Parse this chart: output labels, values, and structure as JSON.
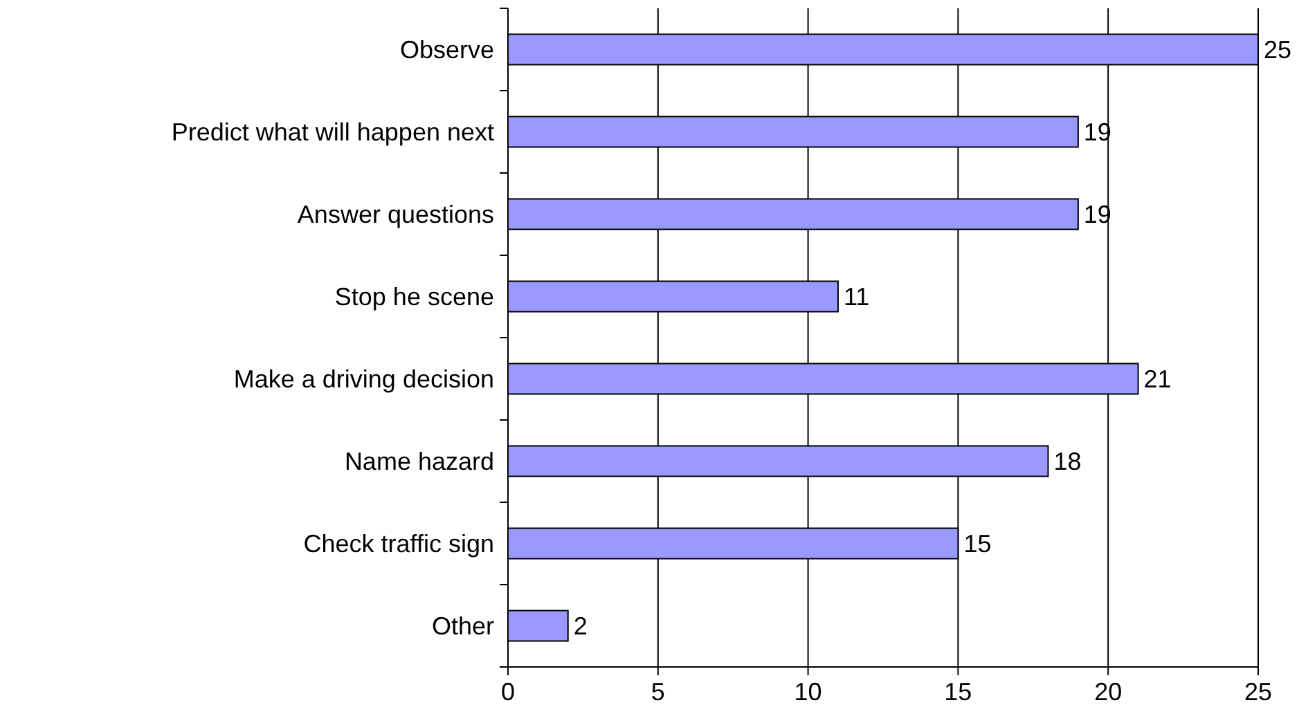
{
  "chart_data": {
    "type": "bar",
    "orientation": "horizontal",
    "categories": [
      "Observe",
      "Predict what will happen next",
      "Answer questions",
      "Stop he scene",
      "Make a driving decision",
      "Name hazard",
      "Check traffic sign",
      "Other"
    ],
    "values": [
      25,
      19,
      19,
      11,
      21,
      18,
      15,
      2
    ],
    "color": "#9999ff",
    "xlim": [
      0,
      25
    ],
    "xticks": [
      0,
      5,
      10,
      15,
      20,
      25
    ],
    "grid": "x",
    "data_labels": true
  }
}
